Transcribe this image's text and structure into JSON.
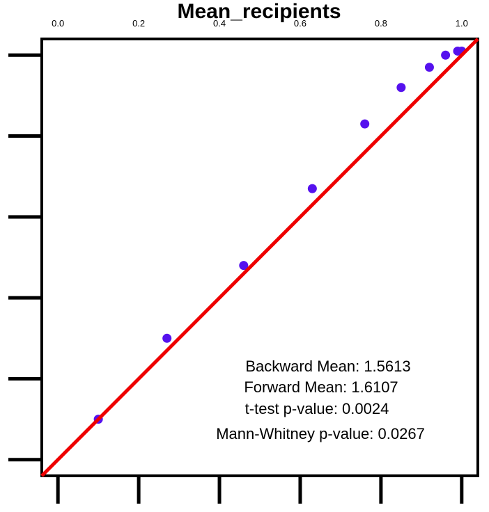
{
  "chart_data": {
    "type": "scatter",
    "title": "Mean_recipients",
    "xlabel": "",
    "ylabel": "",
    "xlim": [
      -0.04,
      1.04
    ],
    "ylim": [
      -0.04,
      1.04
    ],
    "x_tick_labels": [
      "0.0",
      "0.2",
      "0.4",
      "0.6",
      "0.8",
      "1.0"
    ],
    "x_ticks": [
      0.0,
      0.2,
      0.4,
      0.6,
      0.8,
      1.0
    ],
    "y_ticks": [
      0.0,
      0.2,
      0.4,
      0.6,
      0.8,
      1.0
    ],
    "x_tick_labels_position": "top",
    "grid": false,
    "points": [
      {
        "x": 0.1,
        "y": 0.1
      },
      {
        "x": 0.27,
        "y": 0.3
      },
      {
        "x": 0.46,
        "y": 0.48
      },
      {
        "x": 0.63,
        "y": 0.67
      },
      {
        "x": 0.76,
        "y": 0.83
      },
      {
        "x": 0.85,
        "y": 0.92
      },
      {
        "x": 0.92,
        "y": 0.97
      },
      {
        "x": 0.96,
        "y": 1.0
      },
      {
        "x": 0.99,
        "y": 1.01
      },
      {
        "x": 1.0,
        "y": 1.01
      }
    ],
    "reference_line": {
      "from": [
        -0.04,
        -0.04
      ],
      "to": [
        1.04,
        1.04
      ],
      "color": "#ee0000"
    },
    "point_color": "#5511ee",
    "annotations": [
      "Backward Mean: 1.5613",
      "Forward Mean: 1.6107",
      "t-test p-value: 0.0024",
      "Mann-Whitney p-value: 0.0267"
    ]
  }
}
